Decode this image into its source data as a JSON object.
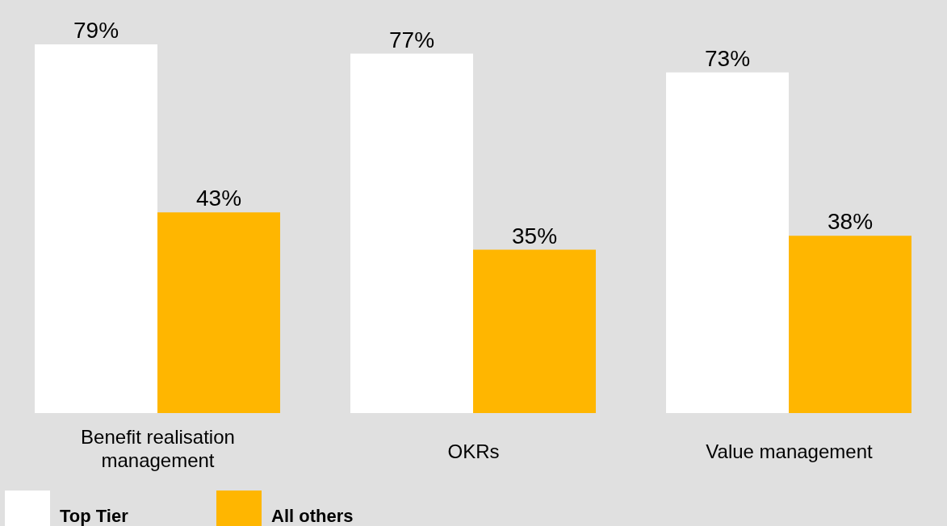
{
  "chart_data": {
    "type": "bar",
    "categories": [
      "Benefit realisation management",
      "OKRs",
      "Value management"
    ],
    "series": [
      {
        "name": "Top Tier",
        "color": "#ffffff",
        "values": [
          79,
          77,
          73
        ],
        "value_labels": [
          "79%",
          "77%",
          "73%"
        ]
      },
      {
        "name": "All others",
        "color": "#ffb600",
        "values": [
          43,
          35,
          38
        ],
        "value_labels": [
          "43%",
          "35%",
          "38%"
        ]
      }
    ],
    "legend": "bottom left",
    "grid": false
  }
}
